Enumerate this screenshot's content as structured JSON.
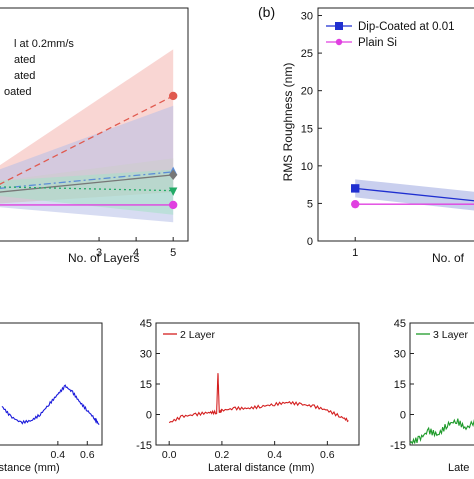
{
  "chart_data": [
    {
      "panel": "",
      "type": "line",
      "xlabel": "No. of Layers",
      "ylabel": "",
      "xlim": [
        0.3,
        5.4
      ],
      "ylim": [
        0,
        31
      ],
      "xticks": [
        3,
        4,
        5
      ],
      "legend_text": [
        "l at 0.2mm/s",
        "ated",
        "ated",
        "oated"
      ],
      "legend_colors": [
        "#999999",
        "#1db380",
        "#e8443a",
        "#2b7fd6"
      ],
      "series": [
        {
          "color": "#e05a4f",
          "style": "dashed",
          "marker": "circle",
          "x": [
            0.3,
            5
          ],
          "y": [
            7.5,
            19.3
          ],
          "band_upper": [
            10,
            25.5
          ],
          "band_lower": [
            5,
            6.5
          ],
          "band_color": "#f4b4ae"
        },
        {
          "color": "#5b8dd6",
          "style": "dashdot",
          "marker": "triangle-up",
          "x": [
            0.3,
            5
          ],
          "y": [
            7,
            9.2
          ],
          "band_upper": [
            9.5,
            18
          ],
          "band_lower": [
            4.5,
            2.5
          ],
          "band_color": "#b7bfe8"
        },
        {
          "color": "#777777",
          "style": "solid",
          "marker": "diamond",
          "x": [
            0.3,
            5
          ],
          "y": [
            6.5,
            8.8
          ],
          "band_upper": [
            8,
            11
          ],
          "band_lower": [
            5,
            6.5
          ],
          "band_color": "#cccccc"
        },
        {
          "color": "#22aa66",
          "style": "dotted",
          "marker": "triangle-down",
          "x": [
            0.3,
            5
          ],
          "y": [
            7.2,
            6.7
          ],
          "band_upper": [
            8,
            9.5
          ],
          "band_lower": [
            6,
            3.5
          ],
          "band_color": "#a6e1c6"
        },
        {
          "color": "#e040e0",
          "style": "solid",
          "marker": "circle",
          "x": [
            0.3,
            5
          ],
          "y": [
            4.8,
            4.8
          ]
        }
      ]
    },
    {
      "panel": "(b)",
      "type": "line",
      "xlabel": "No. of",
      "ylabel": "RMS Roughness (nm)",
      "xlim": [
        0.5,
        2.65
      ],
      "ylim": [
        0,
        31
      ],
      "yticks": [
        0,
        5,
        10,
        15,
        20,
        25,
        30
      ],
      "xticks": [
        1
      ],
      "legend": [
        "Dip-Coated at 0.01",
        "Plain Si"
      ],
      "series": [
        {
          "name": "Dip-Coated at 0.01",
          "color": "#1f2fd0",
          "marker": "square",
          "x": [
            1,
            2.65
          ],
          "y": [
            7,
            5.3
          ],
          "band_upper": [
            8.2,
            6.5
          ],
          "band_lower": [
            5.8,
            4
          ],
          "band_color": "#b7bfe8"
        },
        {
          "name": "Plain Si",
          "color": "#e040e0",
          "marker": "circle",
          "x": [
            1,
            2.65
          ],
          "y": [
            4.9,
            4.9
          ]
        }
      ]
    },
    {
      "panel": "",
      "type": "line",
      "xlabel": "distance (mm)",
      "xlim": [
        0,
        0.7
      ],
      "ylim": [
        -15,
        45
      ],
      "xticks": [
        0.4,
        0.6
      ],
      "series": [
        {
          "color": "#1a1adb",
          "x": [
            0.02,
            0.08,
            0.15,
            0.22,
            0.28,
            0.34,
            0.4,
            0.45,
            0.5,
            0.55,
            0.6,
            0.65,
            0.68
          ],
          "y": [
            4,
            -1,
            -4,
            -3,
            0,
            5,
            10,
            14,
            11,
            6,
            2,
            -2,
            -5
          ]
        }
      ]
    },
    {
      "panel": "",
      "type": "line",
      "xlabel": "Lateral distance (mm)",
      "xlim": [
        -0.05,
        0.72
      ],
      "ylim": [
        -15,
        45
      ],
      "xticks": [
        0.0,
        0.2,
        0.4,
        0.6
      ],
      "yticks": [
        -15,
        0,
        15,
        30,
        45
      ],
      "legend": [
        "2 Layer"
      ],
      "series": [
        {
          "name": "2 Layer",
          "color": "#d42020",
          "x": [
            0.0,
            0.05,
            0.1,
            0.15,
            0.18,
            0.185,
            0.19,
            0.2,
            0.25,
            0.3,
            0.35,
            0.4,
            0.45,
            0.5,
            0.55,
            0.6,
            0.65,
            0.68
          ],
          "y": [
            -4,
            -1,
            0,
            1,
            1,
            21,
            1,
            2,
            3,
            3,
            4,
            5,
            6,
            5,
            4,
            2,
            -1,
            -3
          ]
        }
      ]
    },
    {
      "panel": "",
      "type": "line",
      "xlabel": "Late",
      "xlim": [
        0.0,
        0.15
      ],
      "ylim": [
        -15,
        45
      ],
      "yticks": [
        -15,
        0,
        15,
        30,
        45
      ],
      "legend": [
        "3 Layer"
      ],
      "series": [
        {
          "name": "3 Layer",
          "color": "#1e9a2a",
          "x": [
            0.0,
            0.02,
            0.04,
            0.06,
            0.08,
            0.1,
            0.12,
            0.15
          ],
          "y": [
            -14,
            -12,
            -8,
            -10,
            -5,
            -3,
            -7,
            -1
          ]
        }
      ]
    }
  ]
}
